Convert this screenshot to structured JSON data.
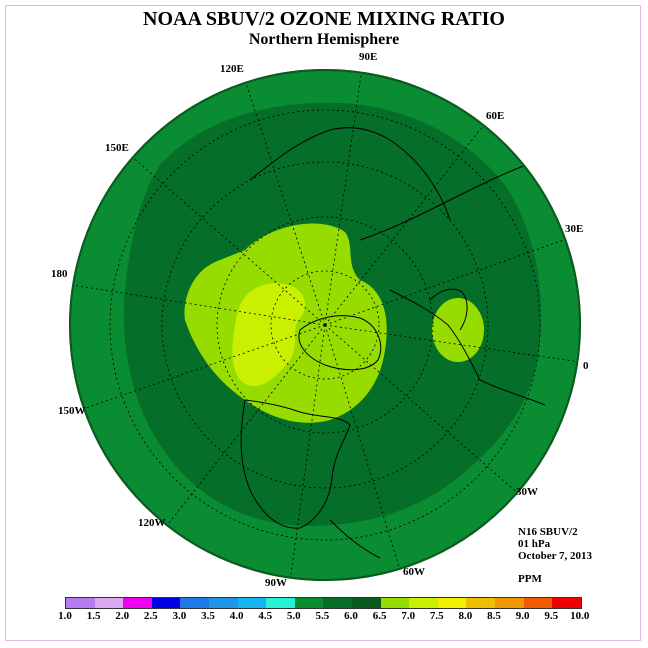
{
  "title": "NOAA SBUV/2 OZONE MIXING RATIO",
  "subtitle": "Northern Hemisphere",
  "longitude_labels": [
    "90E",
    "60E",
    "30E",
    "0",
    "30W",
    "60W",
    "90W",
    "120W",
    "150W",
    "180",
    "150E",
    "120E"
  ],
  "info": {
    "instrument": "N16 SBUV/2",
    "level": "01 hPa",
    "date": "October 7, 2013",
    "units": "PPM"
  },
  "colorbar": {
    "ticks": [
      "1.0",
      "1.5",
      "2.0",
      "2.5",
      "3.0",
      "3.5",
      "4.0",
      "4.5",
      "5.0",
      "5.5",
      "6.0",
      "6.5",
      "7.0",
      "7.5",
      "8.0",
      "8.5",
      "9.0",
      "9.5",
      "10.0"
    ],
    "colors": [
      "#b57cf2",
      "#d9a8f0",
      "#f000f0",
      "#0000e6",
      "#1e78e6",
      "#1e96e6",
      "#14b4f0",
      "#28f0d2",
      "#0a8c32",
      "#056e28",
      "#0a5a1e",
      "#96dc00",
      "#c8f000",
      "#f0f000",
      "#f0be00",
      "#f09600",
      "#f05a00",
      "#f00000",
      "#8c5a3c"
    ]
  },
  "map_colors": {
    "outer_ring": "#0a8c32",
    "mid_dark": "#056e28",
    "light_green": "#96dc00",
    "yellow_green": "#c8f000"
  }
}
